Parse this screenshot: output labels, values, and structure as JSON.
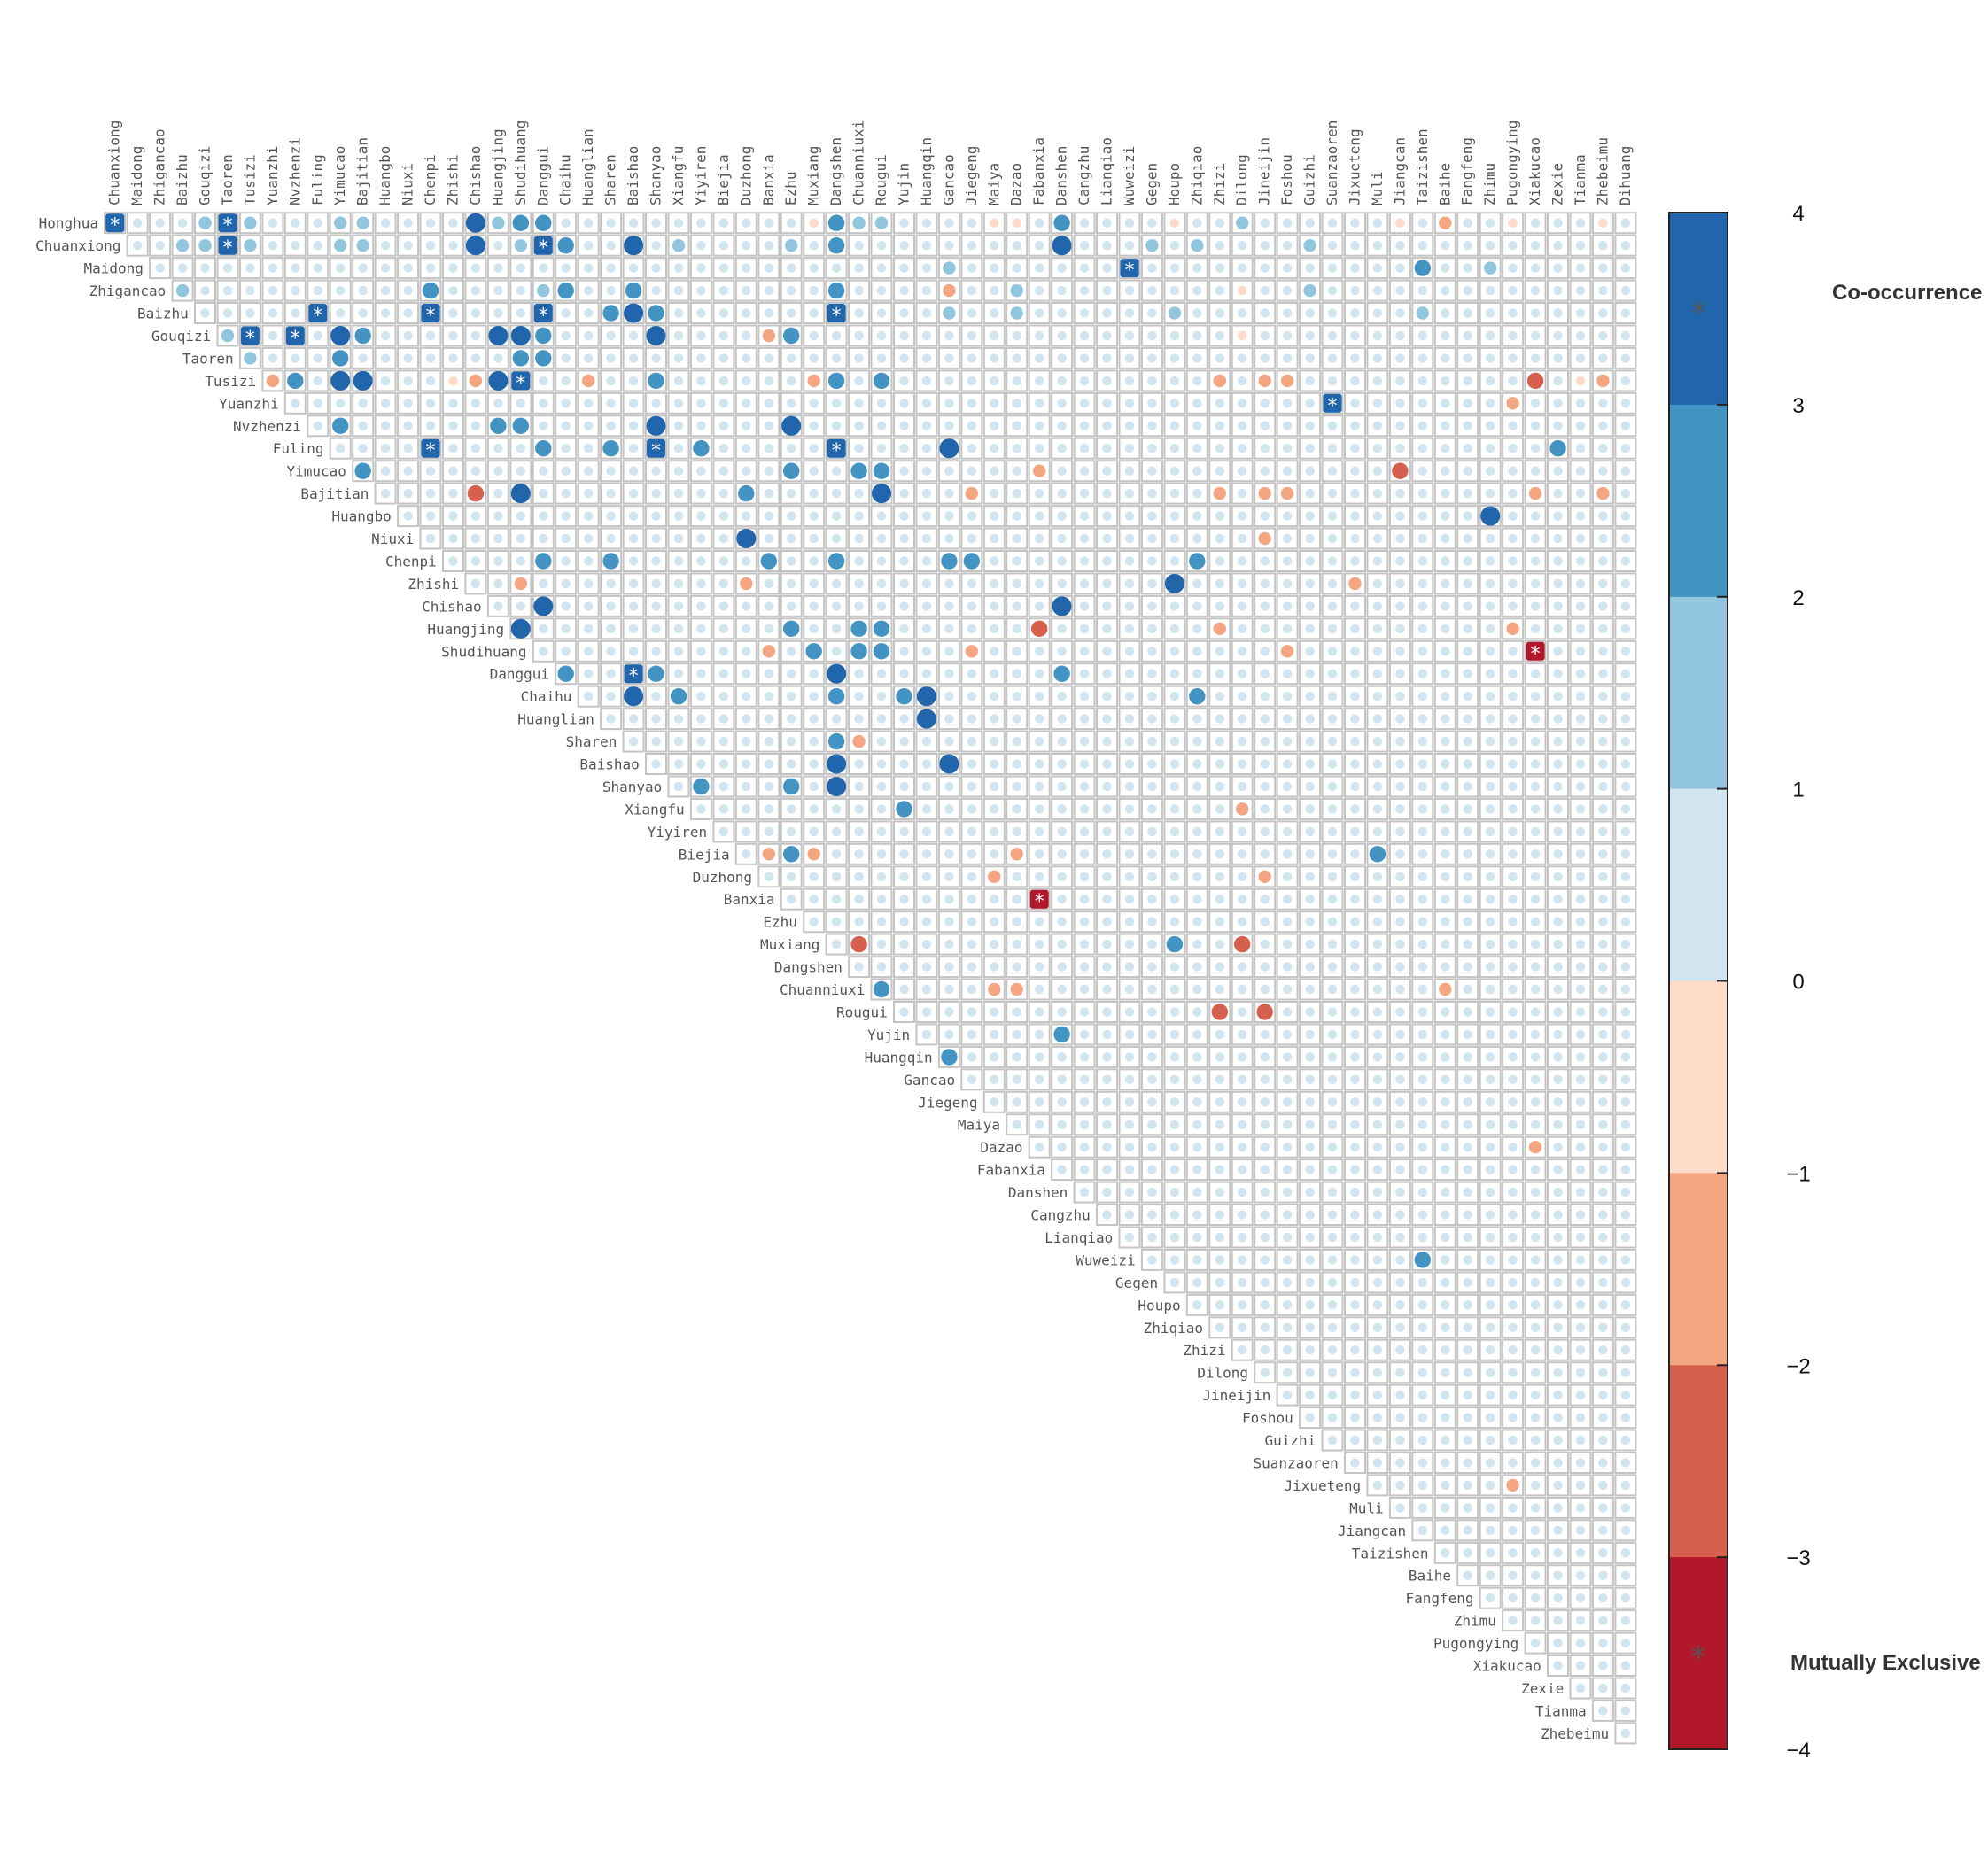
{
  "chart_data": {
    "type": "heatmap",
    "matrix_shape": "upper-triangular",
    "herbs": [
      "Honghua",
      "Chuanxiong",
      "Maidong",
      "Zhigancao",
      "Baizhu",
      "Gouqizi",
      "Taoren",
      "Tusizi",
      "Yuanzhi",
      "Nvzhenzi",
      "Fuling",
      "Yimucao",
      "Bajitian",
      "Huangbo",
      "Niuxi",
      "Chenpi",
      "Zhishi",
      "Chishao",
      "Huangjing",
      "Shudihuang",
      "Danggui",
      "Chaihu",
      "Huanglian",
      "Sharen",
      "Baishao",
      "Shanyao",
      "Xiangfu",
      "Yiyiren",
      "Biejia",
      "Duzhong",
      "Banxia",
      "Ezhu",
      "Muxiang",
      "Dangshen",
      "Chuanniuxi",
      "Rougui",
      "Yujin",
      "Huangqin",
      "Gancao",
      "Jiegeng",
      "Maiya",
      "Dazao",
      "Fabanxia",
      "Danshen",
      "Cangzhu",
      "Lianqiao",
      "Wuweizi",
      "Gegen",
      "Houpo",
      "Zhiqiao",
      "Zhizi",
      "Dilong",
      "Jineijin",
      "Foshou",
      "Guizhi",
      "Suanzaoren",
      "Jixueteng",
      "Muli",
      "Jiangcan",
      "Taizishen",
      "Baihe",
      "Fangfeng",
      "Zhimu",
      "Pugongying",
      "Xiakucao",
      "Zexie",
      "Tianma",
      "Zhebeimu",
      "Dihuang"
    ],
    "column_labels": [
      "Chuanxiong",
      "Maidong",
      "Zhigancao",
      "Baizhu",
      "Gouqizi",
      "Taoren",
      "Tusizi",
      "Yuanzhi",
      "Nvzhenzi",
      "Fuling",
      "Yimucao",
      "Bajitian",
      "Huangbo",
      "Niuxi",
      "Chenpi",
      "Zhishi",
      "Chishao",
      "Huangjing",
      "Shudihuang",
      "Danggui",
      "Chaihu",
      "Huanglian",
      "Sharen",
      "Baishao",
      "Shanyao",
      "Xiangfu",
      "Yiyiren",
      "Biejia",
      "Duzhong",
      "Banxia",
      "Ezhu",
      "Muxiang",
      "Dangshen",
      "Chuanniuxi",
      "Rougui",
      "Yujin",
      "Huangqin",
      "Gancao",
      "Jiegeng",
      "Maiya",
      "Dazao",
      "Fabanxia",
      "Danshen",
      "Cangzhu",
      "Lianqiao",
      "Wuweizi",
      "Gegen",
      "Houpo",
      "Zhiqiao",
      "Zhizi",
      "Dilong",
      "Jineijin",
      "Foshou",
      "Guizhi",
      "Suanzaoren",
      "Jixueteng",
      "Muli",
      "Jiangcan",
      "Taizishen",
      "Baihe",
      "Fangfeng",
      "Zhimu",
      "Pugongying",
      "Xiakucao",
      "Zexie",
      "Tianma",
      "Zhebeimu",
      "Dihuang"
    ],
    "row_labels": [
      "Honghua",
      "Chuanxiong",
      "Maidong",
      "Zhigancao",
      "Baizhu",
      "Gouqizi",
      "Taoren",
      "Tusizi",
      "Yuanzhi",
      "Nvzhenzi",
      "Fuling",
      "Yimucao",
      "Bajitian",
      "Huangbo",
      "Niuxi",
      "Chenpi",
      "Zhishi",
      "Chishao",
      "Huangjing",
      "Shudihuang",
      "Danggui",
      "Chaihu",
      "Huanglian",
      "Sharen",
      "Baishao",
      "Shanyao",
      "Xiangfu",
      "Yiyiren",
      "Biejia",
      "Duzhong",
      "Banxia",
      "Ezhu",
      "Muxiang",
      "Dangshen",
      "Chuanniuxi",
      "Rougui",
      "Yujin",
      "Huangqin",
      "Gancao",
      "Jiegeng",
      "Maiya",
      "Dazao",
      "Fabanxia",
      "Danshen",
      "Cangzhu",
      "Lianqiao",
      "Wuweizi",
      "Gegen",
      "Houpo",
      "Zhiqiao",
      "Zhizi",
      "Dilong",
      "Jineijin",
      "Foshou",
      "Guizhi",
      "Suanzaoren",
      "Jixueteng",
      "Muli",
      "Jiangcan",
      "Taizishen",
      "Baihe",
      "Fangfeng",
      "Zhimu",
      "Pugongying",
      "Xiakucao",
      "Zexie",
      "Tianma",
      "Zhebeimu"
    ],
    "default_value": 0.5,
    "values": [
      [
        "Honghua",
        "Chuanxiong",
        3.6
      ],
      [
        "Honghua",
        "Gouqizi",
        1.5
      ],
      [
        "Honghua",
        "Taoren",
        3.6
      ],
      [
        "Honghua",
        "Tusizi",
        1.5
      ],
      [
        "Honghua",
        "Yimucao",
        1.5
      ],
      [
        "Honghua",
        "Bajitian",
        1.5
      ],
      [
        "Honghua",
        "Chishao",
        3.5
      ],
      [
        "Honghua",
        "Huangjing",
        1.5
      ],
      [
        "Honghua",
        "Shudihuang",
        2.5
      ],
      [
        "Honghua",
        "Danggui",
        2.5
      ],
      [
        "Honghua",
        "Muxiang",
        -0.5
      ],
      [
        "Honghua",
        "Dangshen",
        2.5
      ],
      [
        "Honghua",
        "Chuanniuxi",
        1.5
      ],
      [
        "Honghua",
        "Rougui",
        1.5
      ],
      [
        "Honghua",
        "Maiya",
        -0.5
      ],
      [
        "Honghua",
        "Dazao",
        -0.5
      ],
      [
        "Honghua",
        "Danshen",
        2.5
      ],
      [
        "Honghua",
        "Houpo",
        -0.5
      ],
      [
        "Honghua",
        "Dilong",
        1.5
      ],
      [
        "Honghua",
        "Jiangcan",
        -0.5
      ],
      [
        "Honghua",
        "Baihe",
        -1.5
      ],
      [
        "Honghua",
        "Pugongying",
        -0.5
      ],
      [
        "Honghua",
        "Zhebeimu",
        -0.5
      ],
      [
        "Chuanxiong",
        "Baizhu",
        1.5
      ],
      [
        "Chuanxiong",
        "Gouqizi",
        1.5
      ],
      [
        "Chuanxiong",
        "Taoren",
        3.6
      ],
      [
        "Chuanxiong",
        "Tusizi",
        1.5
      ],
      [
        "Chuanxiong",
        "Yimucao",
        1.5
      ],
      [
        "Chuanxiong",
        "Bajitian",
        1.5
      ],
      [
        "Chuanxiong",
        "Chishao",
        3.5
      ],
      [
        "Chuanxiong",
        "Shudihuang",
        1.5
      ],
      [
        "Chuanxiong",
        "Danggui",
        3.6
      ],
      [
        "Chuanxiong",
        "Chaihu",
        2.5
      ],
      [
        "Chuanxiong",
        "Baishao",
        3.5
      ],
      [
        "Chuanxiong",
        "Xiangfu",
        1.5
      ],
      [
        "Chuanxiong",
        "Ezhu",
        1.5
      ],
      [
        "Chuanxiong",
        "Dangshen",
        2.5
      ],
      [
        "Chuanxiong",
        "Danshen",
        3.5
      ],
      [
        "Chuanxiong",
        "Gegen",
        1.5
      ],
      [
        "Chuanxiong",
        "Zhiqiao",
        1.5
      ],
      [
        "Chuanxiong",
        "Guizhi",
        1.5
      ],
      [
        "Maidong",
        "Gancao",
        1.5
      ],
      [
        "Maidong",
        "Wuweizi",
        3.6
      ],
      [
        "Maidong",
        "Taizishen",
        2.5
      ],
      [
        "Maidong",
        "Zhimu",
        1.5
      ],
      [
        "Zhigancao",
        "Baizhu",
        1.5
      ],
      [
        "Zhigancao",
        "Chenpi",
        2.5
      ],
      [
        "Zhigancao",
        "Danggui",
        1.5
      ],
      [
        "Zhigancao",
        "Chaihu",
        2.5
      ],
      [
        "Zhigancao",
        "Baishao",
        2.5
      ],
      [
        "Zhigancao",
        "Dangshen",
        2.5
      ],
      [
        "Zhigancao",
        "Gancao",
        -1.5
      ],
      [
        "Zhigancao",
        "Dazao",
        1.5
      ],
      [
        "Zhigancao",
        "Dilong",
        -0.5
      ],
      [
        "Zhigancao",
        "Guizhi",
        1.5
      ],
      [
        "Baizhu",
        "Fuling",
        3.6
      ],
      [
        "Baizhu",
        "Chenpi",
        3.6
      ],
      [
        "Baizhu",
        "Danggui",
        3.6
      ],
      [
        "Baizhu",
        "Sharen",
        2.5
      ],
      [
        "Baizhu",
        "Baishao",
        3.5
      ],
      [
        "Baizhu",
        "Shanyao",
        2.5
      ],
      [
        "Baizhu",
        "Dangshen",
        3.6
      ],
      [
        "Baizhu",
        "Gancao",
        1.5
      ],
      [
        "Baizhu",
        "Dazao",
        1.5
      ],
      [
        "Baizhu",
        "Houpo",
        1.5
      ],
      [
        "Baizhu",
        "Taizishen",
        1.5
      ],
      [
        "Gouqizi",
        "Taoren",
        1.5
      ],
      [
        "Gouqizi",
        "Tusizi",
        3.6
      ],
      [
        "Gouqizi",
        "Nvzhenzi",
        3.6
      ],
      [
        "Gouqizi",
        "Yimucao",
        3.5
      ],
      [
        "Gouqizi",
        "Bajitian",
        2.5
      ],
      [
        "Gouqizi",
        "Huangjing",
        3.5
      ],
      [
        "Gouqizi",
        "Shudihuang",
        3.5
      ],
      [
        "Gouqizi",
        "Danggui",
        2.5
      ],
      [
        "Gouqizi",
        "Shanyao",
        3.5
      ],
      [
        "Gouqizi",
        "Banxia",
        -1.5
      ],
      [
        "Gouqizi",
        "Ezhu",
        2.5
      ],
      [
        "Gouqizi",
        "Dilong",
        -0.5
      ],
      [
        "Taoren",
        "Tusizi",
        1.5
      ],
      [
        "Taoren",
        "Yimucao",
        2.5
      ],
      [
        "Taoren",
        "Shudihuang",
        2.5
      ],
      [
        "Taoren",
        "Danggui",
        2.5
      ],
      [
        "Tusizi",
        "Yuanzhi",
        -1.5
      ],
      [
        "Tusizi",
        "Nvzhenzi",
        2.5
      ],
      [
        "Tusizi",
        "Yimucao",
        3.5
      ],
      [
        "Tusizi",
        "Bajitian",
        3.5
      ],
      [
        "Tusizi",
        "Zhishi",
        -0.5
      ],
      [
        "Tusizi",
        "Chishao",
        -1.5
      ],
      [
        "Tusizi",
        "Huangjing",
        3.5
      ],
      [
        "Tusizi",
        "Shudihuang",
        3.6
      ],
      [
        "Tusizi",
        "Huanglian",
        -1.5
      ],
      [
        "Tusizi",
        "Shanyao",
        2.5
      ],
      [
        "Tusizi",
        "Muxiang",
        -1.5
      ],
      [
        "Tusizi",
        "Dangshen",
        2.5
      ],
      [
        "Tusizi",
        "Rougui",
        2.5
      ],
      [
        "Tusizi",
        "Zhizi",
        -1.5
      ],
      [
        "Tusizi",
        "Jineijin",
        -1.5
      ],
      [
        "Tusizi",
        "Foshou",
        -1.5
      ],
      [
        "Tusizi",
        "Xiakucao",
        -2.5
      ],
      [
        "Tusizi",
        "Tianma",
        -0.5
      ],
      [
        "Tusizi",
        "Zhebeimu",
        -1.5
      ],
      [
        "Yuanzhi",
        "Suanzaoren",
        3.6
      ],
      [
        "Yuanzhi",
        "Pugongying",
        -1.5
      ],
      [
        "Nvzhenzi",
        "Yimucao",
        2.5
      ],
      [
        "Nvzhenzi",
        "Huangjing",
        2.5
      ],
      [
        "Nvzhenzi",
        "Shudihuang",
        2.5
      ],
      [
        "Nvzhenzi",
        "Shanyao",
        3.5
      ],
      [
        "Nvzhenzi",
        "Ezhu",
        3.5
      ],
      [
        "Fuling",
        "Chenpi",
        3.6
      ],
      [
        "Fuling",
        "Danggui",
        2.5
      ],
      [
        "Fuling",
        "Sharen",
        2.5
      ],
      [
        "Fuling",
        "Shanyao",
        3.6
      ],
      [
        "Fuling",
        "Yiyiren",
        2.5
      ],
      [
        "Fuling",
        "Dangshen",
        3.6
      ],
      [
        "Fuling",
        "Gancao",
        3.5
      ],
      [
        "Fuling",
        "Zexie",
        2.5
      ],
      [
        "Yimucao",
        "Bajitian",
        2.5
      ],
      [
        "Yimucao",
        "Ezhu",
        2.5
      ],
      [
        "Yimucao",
        "Chuanniuxi",
        2.5
      ],
      [
        "Yimucao",
        "Rougui",
        2.5
      ],
      [
        "Yimucao",
        "Fabanxia",
        -1.5
      ],
      [
        "Yimucao",
        "Jiangcan",
        -2.5
      ],
      [
        "Bajitian",
        "Chishao",
        -2.5
      ],
      [
        "Bajitian",
        "Shudihuang",
        3.5
      ],
      [
        "Bajitian",
        "Duzhong",
        2.5
      ],
      [
        "Bajitian",
        "Rougui",
        3.5
      ],
      [
        "Bajitian",
        "Jiegeng",
        -1.5
      ],
      [
        "Bajitian",
        "Zhizi",
        -1.5
      ],
      [
        "Bajitian",
        "Jineijin",
        -1.5
      ],
      [
        "Bajitian",
        "Foshou",
        -1.5
      ],
      [
        "Bajitian",
        "Xiakucao",
        -1.5
      ],
      [
        "Bajitian",
        "Zhebeimu",
        -1.5
      ],
      [
        "Huangbo",
        "Zhimu",
        3.5
      ],
      [
        "Niuxi",
        "Duzhong",
        3.5
      ],
      [
        "Niuxi",
        "Jineijin",
        -1.5
      ],
      [
        "Chenpi",
        "Danggui",
        2.5
      ],
      [
        "Chenpi",
        "Sharen",
        2.5
      ],
      [
        "Chenpi",
        "Banxia",
        2.5
      ],
      [
        "Chenpi",
        "Dangshen",
        2.5
      ],
      [
        "Chenpi",
        "Gancao",
        2.5
      ],
      [
        "Chenpi",
        "Jiegeng",
        2.5
      ],
      [
        "Chenpi",
        "Zhiqiao",
        2.5
      ],
      [
        "Zhishi",
        "Shudihuang",
        -1.5
      ],
      [
        "Zhishi",
        "Duzhong",
        -1.5
      ],
      [
        "Zhishi",
        "Houpo",
        3.5
      ],
      [
        "Zhishi",
        "Jixueteng",
        -1.5
      ],
      [
        "Chishao",
        "Danggui",
        3.5
      ],
      [
        "Chishao",
        "Danshen",
        3.5
      ],
      [
        "Huangjing",
        "Shudihuang",
        3.5
      ],
      [
        "Huangjing",
        "Ezhu",
        2.5
      ],
      [
        "Huangjing",
        "Chuanniuxi",
        2.5
      ],
      [
        "Huangjing",
        "Rougui",
        2.5
      ],
      [
        "Huangjing",
        "Fabanxia",
        -2.5
      ],
      [
        "Huangjing",
        "Zhizi",
        -1.5
      ],
      [
        "Huangjing",
        "Pugongying",
        -1.5
      ],
      [
        "Shudihuang",
        "Banxia",
        -1.5
      ],
      [
        "Shudihuang",
        "Muxiang",
        2.5
      ],
      [
        "Shudihuang",
        "Chuanniuxi",
        2.5
      ],
      [
        "Shudihuang",
        "Rougui",
        2.5
      ],
      [
        "Shudihuang",
        "Jiegeng",
        -1.5
      ],
      [
        "Shudihuang",
        "Foshou",
        -1.5
      ],
      [
        "Shudihuang",
        "Xiakucao",
        -3.6
      ],
      [
        "Danggui",
        "Chaihu",
        2.5
      ],
      [
        "Danggui",
        "Baishao",
        3.6
      ],
      [
        "Danggui",
        "Shanyao",
        2.5
      ],
      [
        "Danggui",
        "Dangshen",
        3.5
      ],
      [
        "Danggui",
        "Danshen",
        2.5
      ],
      [
        "Chaihu",
        "Baishao",
        3.5
      ],
      [
        "Chaihu",
        "Xiangfu",
        2.5
      ],
      [
        "Chaihu",
        "Dangshen",
        2.5
      ],
      [
        "Chaihu",
        "Yujin",
        2.5
      ],
      [
        "Chaihu",
        "Huangqin",
        3.5
      ],
      [
        "Chaihu",
        "Zhiqiao",
        2.5
      ],
      [
        "Huanglian",
        "Huangqin",
        3.5
      ],
      [
        "Sharen",
        "Dangshen",
        2.5
      ],
      [
        "Sharen",
        "Chuanniuxi",
        -1.5
      ],
      [
        "Baishao",
        "Dangshen",
        3.5
      ],
      [
        "Baishao",
        "Gancao",
        3.5
      ],
      [
        "Shanyao",
        "Yiyiren",
        2.5
      ],
      [
        "Shanyao",
        "Ezhu",
        2.5
      ],
      [
        "Shanyao",
        "Dangshen",
        3.5
      ],
      [
        "Xiangfu",
        "Yujin",
        2.5
      ],
      [
        "Xiangfu",
        "Dilong",
        -1.5
      ],
      [
        "Biejia",
        "Banxia",
        -1.5
      ],
      [
        "Biejia",
        "Ezhu",
        2.5
      ],
      [
        "Biejia",
        "Muxiang",
        -1.5
      ],
      [
        "Biejia",
        "Dazao",
        -1.5
      ],
      [
        "Biejia",
        "Muli",
        2.5
      ],
      [
        "Duzhong",
        "Maiya",
        -1.5
      ],
      [
        "Duzhong",
        "Jineijin",
        -1.5
      ],
      [
        "Banxia",
        "Fabanxia",
        -3.6
      ],
      [
        "Muxiang",
        "Chuanniuxi",
        -2.5
      ],
      [
        "Muxiang",
        "Houpo",
        2.5
      ],
      [
        "Muxiang",
        "Dilong",
        -2.5
      ],
      [
        "Chuanniuxi",
        "Rougui",
        2.5
      ],
      [
        "Chuanniuxi",
        "Maiya",
        -1.5
      ],
      [
        "Chuanniuxi",
        "Dazao",
        -1.5
      ],
      [
        "Chuanniuxi",
        "Baihe",
        -1.5
      ],
      [
        "Rougui",
        "Zhizi",
        -2.5
      ],
      [
        "Rougui",
        "Jineijin",
        -2.5
      ],
      [
        "Yujin",
        "Danshen",
        2.5
      ],
      [
        "Huangqin",
        "Gancao",
        2.5
      ],
      [
        "Dazao",
        "Xiakucao",
        -1.5
      ],
      [
        "Wuweizi",
        "Taizishen",
        2.5
      ],
      [
        "Jixueteng",
        "Pugongying",
        -1.5
      ]
    ],
    "color_scale": {
      "min": -4,
      "max": 4,
      "ticks": [
        "4",
        "3",
        "2",
        "1",
        "0",
        "−1",
        "−2",
        "−3",
        "−4"
      ],
      "colors": [
        "#b2182b",
        "#d6604d",
        "#f4a582",
        "#fddbc7",
        "#d1e5f0",
        "#92c5de",
        "#4393c3",
        "#2166ac"
      ],
      "top_label": "Co-occurrence",
      "bottom_label": "Mutually Exclusive",
      "marker": "*"
    },
    "cell_colors": {
      "cell_border": "#c4c4c4",
      "neutral_dot": "#d1e5f0"
    }
  }
}
